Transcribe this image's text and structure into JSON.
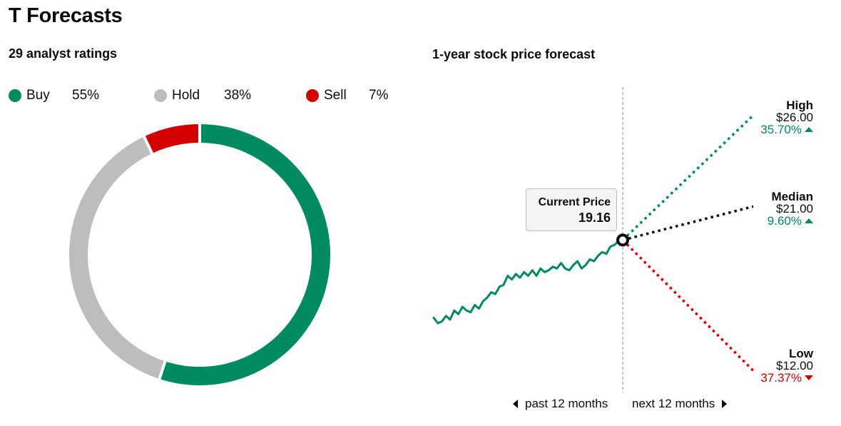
{
  "page": {
    "title": "T Forecasts"
  },
  "ratings": {
    "heading": "29 analyst ratings"
  },
  "forecast": {
    "heading": "1-year stock price forecast",
    "current_label": "Current Price",
    "current_value": "19.16",
    "past_label": "past 12 months",
    "next_label": "next 12 months",
    "targets": {
      "high": {
        "label": "High",
        "price": "$26.00",
        "pct": "35.70%",
        "direction": "up"
      },
      "median": {
        "label": "Median",
        "price": "$21.00",
        "pct": "9.60%",
        "direction": "up"
      },
      "low": {
        "label": "Low",
        "price": "$12.00",
        "pct": "37.37%",
        "direction": "down"
      }
    }
  },
  "colors": {
    "buy": "#008a5f",
    "hold": "#bdbdbd",
    "sell": "#d40000",
    "median": "#0c0c0c"
  },
  "chart_data": [
    {
      "type": "pie",
      "variant": "donut",
      "categories": [
        "Buy",
        "Hold",
        "Sell"
      ],
      "values": [
        55,
        38,
        7
      ],
      "labels": [
        "55%",
        "38%",
        "7%"
      ],
      "colors": [
        "#008a5f",
        "#bdbdbd",
        "#d40000"
      ],
      "legend_position": "top"
    },
    {
      "type": "line",
      "unit": "USD",
      "ylim": [
        11,
        27
      ],
      "series": [
        {
          "kind": "price-history",
          "values": [
            14.9,
            14.6,
            14.7,
            15.0,
            14.8,
            15.3,
            15.1,
            15.5,
            15.3,
            15.2,
            15.6,
            15.4,
            15.8,
            16.0,
            16.3,
            16.2,
            16.6,
            16.7,
            17.2,
            17.0,
            17.3,
            17.1,
            17.4,
            17.2,
            17.5,
            17.2,
            17.6,
            17.4,
            17.5,
            17.7,
            17.6,
            17.9,
            17.6,
            17.5,
            17.8,
            18.0,
            17.6,
            17.8,
            18.1,
            18.0,
            18.3,
            18.5,
            18.4,
            18.8,
            18.9,
            19.1,
            19.16
          ]
        },
        {
          "kind": "projection",
          "target": "high",
          "from": 19.16,
          "to": 26.0
        },
        {
          "kind": "projection",
          "target": "median",
          "from": 19.16,
          "to": 21.0
        },
        {
          "kind": "projection",
          "target": "low",
          "from": 19.16,
          "to": 12.0
        }
      ]
    }
  ]
}
